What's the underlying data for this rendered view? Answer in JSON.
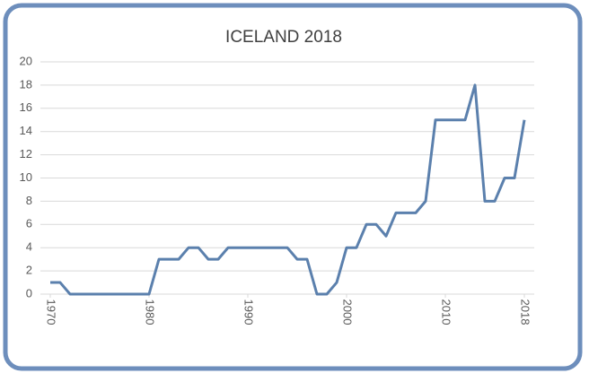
{
  "chart_data": {
    "type": "line",
    "title": "ICELAND 2018",
    "x": [
      1970,
      1971,
      1972,
      1973,
      1974,
      1975,
      1976,
      1977,
      1978,
      1979,
      1980,
      1981,
      1982,
      1983,
      1984,
      1985,
      1986,
      1987,
      1988,
      1989,
      1990,
      1991,
      1992,
      1993,
      1994,
      1995,
      1996,
      1997,
      1998,
      1999,
      2000,
      2001,
      2002,
      2003,
      2004,
      2005,
      2006,
      2007,
      2008,
      2009,
      2010,
      2011,
      2012,
      2013,
      2014,
      2015,
      2016,
      2017,
      2018
    ],
    "series": [
      {
        "name": "Iceland",
        "color": "#5b80ad",
        "values": [
          1,
          1,
          0,
          0,
          0,
          0,
          0,
          0,
          0,
          0,
          0,
          3,
          3,
          3,
          4,
          4,
          3,
          3,
          4,
          4,
          4,
          4,
          4,
          4,
          4,
          3,
          3,
          0,
          0,
          1,
          4,
          4,
          6,
          6,
          5,
          7,
          7,
          7,
          8,
          15,
          15,
          15,
          15,
          18,
          8,
          8,
          10,
          10,
          15
        ]
      }
    ],
    "xlim": [
      1969,
      2019
    ],
    "xticks": [
      1970,
      1980,
      1990,
      2000,
      2010,
      2018
    ],
    "ylim": [
      0,
      20
    ],
    "yticks": [
      0,
      2,
      4,
      6,
      8,
      10,
      12,
      14,
      16,
      18,
      20
    ],
    "grid": true
  }
}
